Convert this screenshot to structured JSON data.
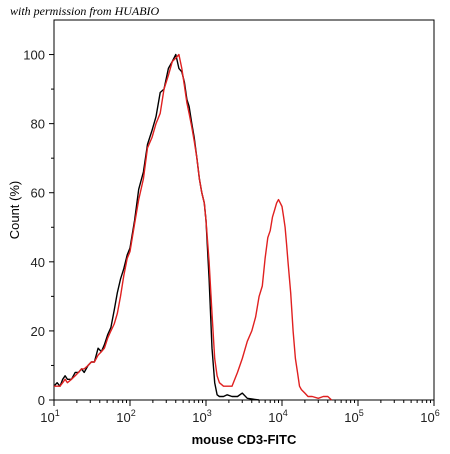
{
  "watermark": "with permission from HUABIO",
  "chart_data": {
    "type": "line",
    "title": "",
    "xlabel": "mouse CD3-FITC",
    "ylabel": "Count (%)",
    "xscale": "log",
    "xlim": [
      10,
      1000000
    ],
    "ylim": [
      0,
      110
    ],
    "xticks": [
      10,
      100,
      1000,
      10000,
      100000,
      1000000
    ],
    "xtick_labels": [
      {
        "base": "10",
        "exp": "1"
      },
      {
        "base": "10",
        "exp": "2"
      },
      {
        "base": "10",
        "exp": "3"
      },
      {
        "base": "10",
        "exp": "4"
      },
      {
        "base": "10",
        "exp": "5"
      },
      {
        "base": "10",
        "exp": "6"
      }
    ],
    "yticks": [
      0,
      20,
      40,
      60,
      80,
      100
    ],
    "ytick_labels": [
      "0",
      "20",
      "40",
      "60",
      "80",
      "100"
    ],
    "grid": false,
    "legend": "none",
    "series": [
      {
        "color": "#000000",
        "x": [
          10,
          11,
          12,
          13,
          14,
          15,
          17,
          19,
          21,
          23,
          25,
          28,
          31,
          34,
          38,
          42,
          46,
          51,
          56,
          62,
          68,
          75,
          83,
          92,
          100,
          115,
          130,
          150,
          170,
          195,
          220,
          250,
          280,
          320,
          360,
          400,
          440,
          480,
          520,
          560,
          600,
          650,
          700,
          760,
          820,
          880,
          950,
          1000,
          1100,
          1200,
          1300,
          1400,
          1500,
          1700,
          1900,
          2200,
          2600,
          3000,
          3500,
          4000,
          5000
        ],
        "y": [
          4,
          5,
          4,
          6,
          7,
          6,
          6,
          8,
          8,
          9,
          8,
          10,
          11,
          11,
          15,
          14,
          16,
          19,
          21,
          26,
          31,
          35,
          38,
          42,
          44,
          52,
          61,
          66,
          74,
          78,
          82,
          89,
          90,
          96,
          98,
          100,
          96,
          95,
          92,
          87,
          85,
          80,
          76,
          70,
          64,
          60,
          57,
          52,
          35,
          15,
          5,
          1.5,
          1,
          1,
          1.5,
          1,
          1,
          2,
          0.5,
          0.3,
          0
        ]
      },
      {
        "color": "#e02020",
        "x": [
          10,
          11,
          12,
          13,
          14,
          15,
          17,
          19,
          21,
          23,
          25,
          28,
          31,
          34,
          38,
          42,
          46,
          51,
          56,
          62,
          68,
          75,
          83,
          92,
          100,
          115,
          130,
          150,
          170,
          195,
          220,
          250,
          280,
          320,
          360,
          400,
          440,
          480,
          520,
          560,
          600,
          650,
          700,
          760,
          820,
          880,
          950,
          1000,
          1100,
          1200,
          1300,
          1400,
          1500,
          1700,
          1900,
          2200,
          2600,
          3000,
          3500,
          4000,
          4500,
          5000,
          5500,
          6000,
          6500,
          7000,
          7500,
          8000,
          8500,
          9000,
          9500,
          10000,
          10500,
          11000,
          11500,
          12000,
          13000,
          14000,
          15000,
          16000,
          17000,
          18000,
          20000,
          22000,
          25000,
          30000,
          35000,
          40000,
          45000
        ],
        "y": [
          4,
          4,
          4,
          5,
          6,
          5,
          6,
          7,
          8,
          9,
          9,
          10,
          11,
          11,
          13,
          14,
          15,
          18,
          20,
          22,
          25,
          30,
          36,
          41,
          43,
          51,
          58,
          64,
          73,
          76,
          80,
          83,
          90,
          94,
          98,
          99,
          100,
          96,
          91,
          86,
          83,
          79,
          75,
          70,
          64,
          60,
          57,
          52,
          40,
          25,
          12,
          7,
          5,
          4,
          4,
          4,
          8,
          12,
          17,
          20,
          24,
          30,
          33,
          41,
          47,
          49,
          53,
          55,
          57,
          58,
          57,
          56,
          53,
          50,
          45,
          40,
          31,
          20,
          12,
          8,
          4,
          3,
          2,
          1,
          1,
          0.5,
          1,
          1,
          0
        ]
      }
    ]
  }
}
